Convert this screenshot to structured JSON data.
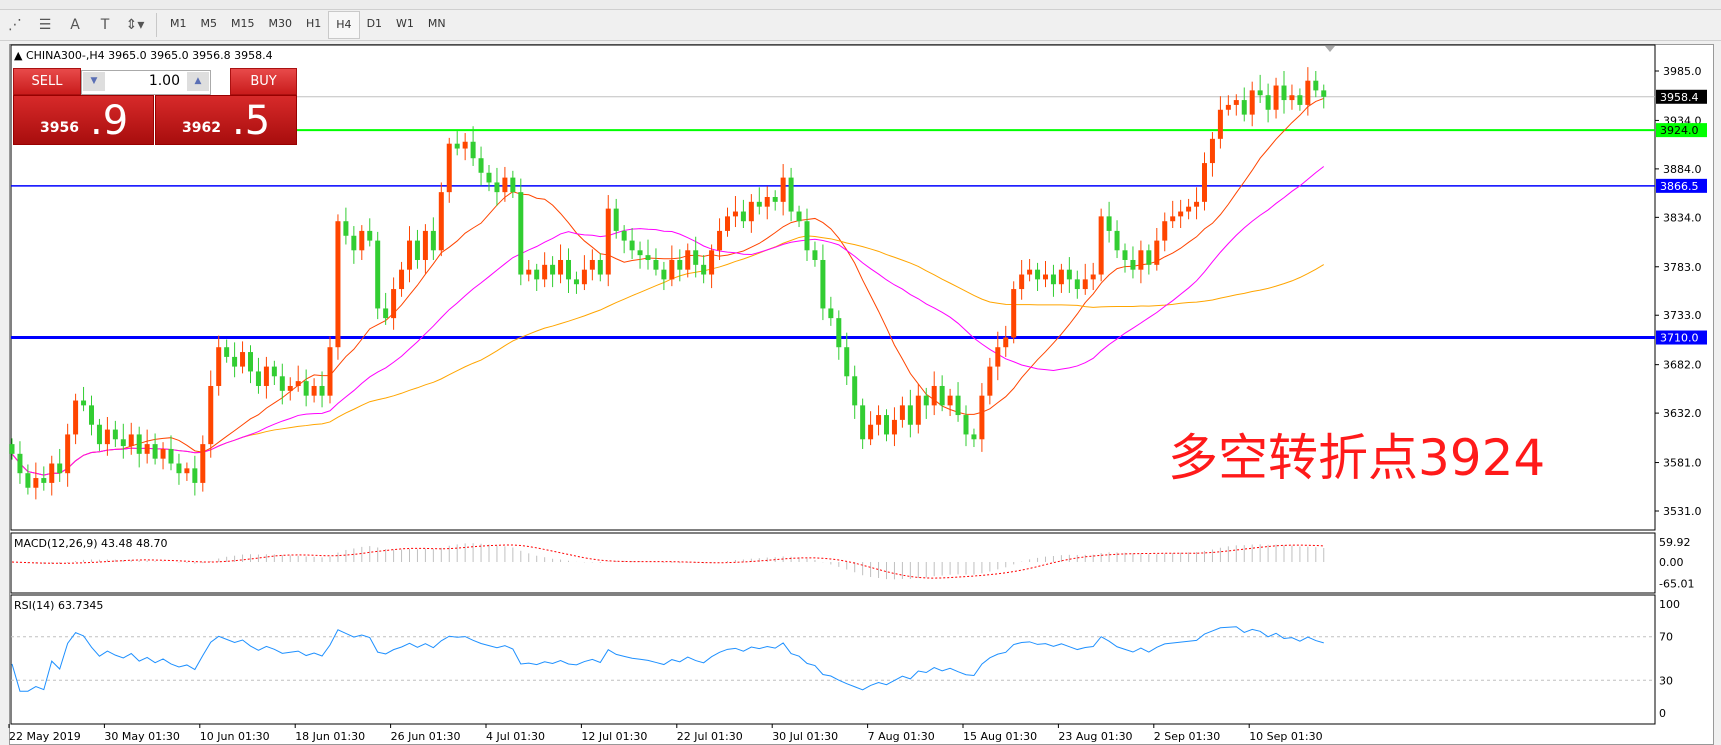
{
  "toolbar": {
    "tools": [
      "elliott-icon",
      "fibo-icon",
      "text-icon",
      "label-icon",
      "arrows-icon"
    ],
    "timeframes": [
      "M1",
      "M5",
      "M15",
      "M30",
      "H1",
      "H4",
      "D1",
      "W1",
      "MN"
    ],
    "active": "H4"
  },
  "chart": {
    "header": "CHINA300-,H4  3965.0 3965.0 3956.8 3958.4"
  },
  "trade": {
    "sell": "SELL",
    "buy": "BUY",
    "volume": "1.00",
    "sell_small": "3956",
    "sell_big": ".9",
    "buy_small": "3962",
    "buy_big": ".5"
  },
  "annotation": "多空转折点3924",
  "indicators": {
    "macd": "MACD(12,26,9) 43.48 48.70",
    "rsi": "RSI(14) 63.7345"
  },
  "chart_data": {
    "type": "candlestick",
    "symbol": "CHINA300-",
    "timeframe": "H4",
    "price_ticks": [
      "3985.0",
      "3934.0",
      "3884.0",
      "3834.0",
      "3783.0",
      "3733.0",
      "3682.0",
      "3632.0",
      "3581.0",
      "3531.0"
    ],
    "ylim": [
      3531,
      3985
    ],
    "levels": [
      {
        "value": "3958.4",
        "color": "#000000"
      },
      {
        "value": "3924.0",
        "color": "#00ff00"
      },
      {
        "value": "3866.5",
        "color": "#0000ff"
      },
      {
        "value": "3710.0",
        "color": "#0000ff"
      }
    ],
    "macd_ticks": [
      "59.92",
      "0.00",
      "-65.01"
    ],
    "rsi_ticks": [
      "100",
      "70",
      "30",
      "0"
    ],
    "date_ticks": [
      "22 May 2019",
      "30 May 01:30",
      "10 Jun 01:30",
      "18 Jun 01:30",
      "26 Jun 01:30",
      "4 Jul 01:30",
      "12 Jul 01:30",
      "22 Jul 01:30",
      "30 Jul 01:30",
      "7 Aug 01:30",
      "15 Aug 01:30",
      "23 Aug 01:30",
      "2 Sep 01:30",
      "10 Sep 01:30"
    ],
    "up_color": "#ff4500",
    "down_color": "#32cd32",
    "closes": [
      3590,
      3570,
      3555,
      3565,
      3560,
      3580,
      3570,
      3610,
      3645,
      3640,
      3620,
      3600,
      3615,
      3605,
      3598,
      3610,
      3590,
      3600,
      3585,
      3595,
      3580,
      3570,
      3575,
      3560,
      3600,
      3660,
      3700,
      3690,
      3680,
      3695,
      3675,
      3660,
      3680,
      3670,
      3655,
      3660,
      3665,
      3650,
      3660,
      3650,
      3700,
      3830,
      3815,
      3800,
      3820,
      3810,
      3740,
      3730,
      3760,
      3780,
      3810,
      3790,
      3820,
      3800,
      3860,
      3910,
      3905,
      3912,
      3895,
      3880,
      3870,
      3860,
      3875,
      3860,
      3775,
      3780,
      3770,
      3785,
      3775,
      3790,
      3770,
      3765,
      3780,
      3790,
      3775,
      3843,
      3820,
      3810,
      3800,
      3795,
      3790,
      3780,
      3770,
      3790,
      3780,
      3800,
      3785,
      3775,
      3800,
      3820,
      3835,
      3840,
      3830,
      3850,
      3845,
      3855,
      3850,
      3875,
      3840,
      3830,
      3800,
      3790,
      3740,
      3730,
      3700,
      3670,
      3640,
      3605,
      3620,
      3630,
      3610,
      3625,
      3640,
      3620,
      3650,
      3640,
      3660,
      3640,
      3650,
      3630,
      3610,
      3605,
      3650,
      3680,
      3700,
      3710,
      3760,
      3775,
      3780,
      3770,
      3775,
      3765,
      3780,
      3770,
      3760,
      3770,
      3775,
      3835,
      3820,
      3800,
      3790,
      3780,
      3800,
      3785,
      3810,
      3830,
      3835,
      3840,
      3845,
      3850,
      3890,
      3915,
      3945,
      3950,
      3955,
      3940,
      3965,
      3960,
      3945,
      3970,
      3955,
      3960,
      3950,
      3975,
      3965,
      3958.4
    ]
  }
}
